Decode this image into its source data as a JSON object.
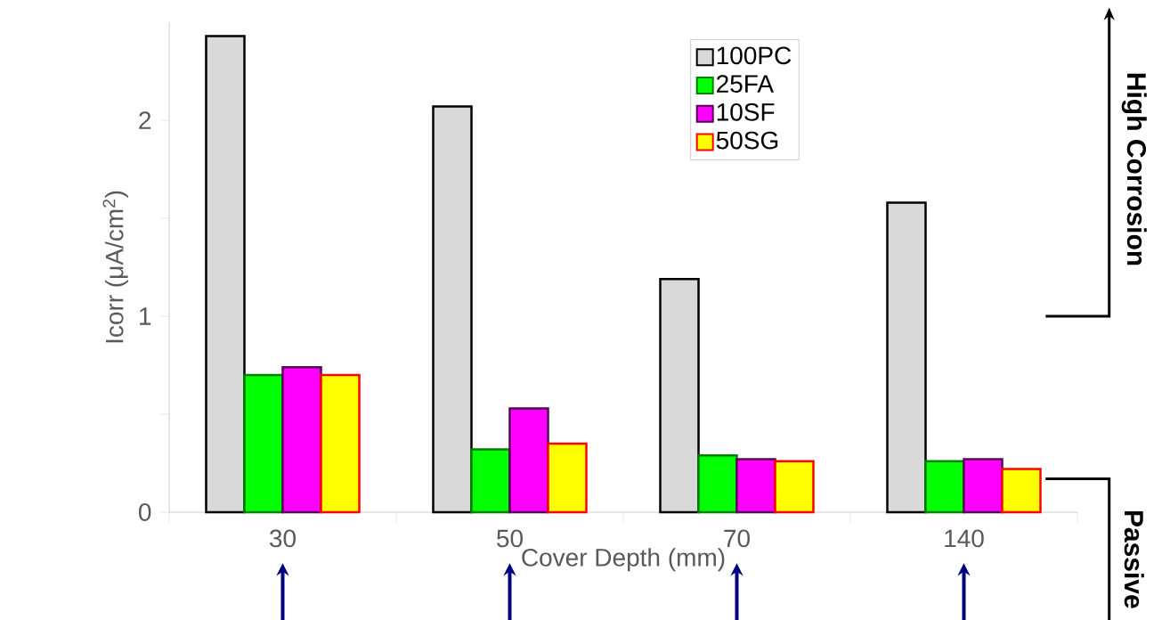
{
  "chart_data": {
    "type": "bar",
    "xlabel": "Cover Depth (mm)",
    "ylabel": "Icorr (μA/cm$^{2}$)",
    "categories": [
      "30",
      "50",
      "70",
      "140"
    ],
    "series": [
      {
        "name": "100PC",
        "color": "#d9d9d9",
        "values": [
          2.43,
          2.07,
          1.19,
          1.58
        ]
      },
      {
        "name": "25FA",
        "color": "#00ff00",
        "values": [
          0.7,
          0.32,
          0.29,
          0.26
        ]
      },
      {
        "name": "10SF",
        "color": "#ff00ff",
        "values": [
          0.74,
          0.53,
          0.27,
          0.27
        ]
      },
      {
        "name": "50SG",
        "color": "#ffff00",
        "values": [
          0.7,
          0.35,
          0.26,
          0.22
        ]
      }
    ],
    "ylim": [
      0,
      2.5
    ],
    "yticks": [
      0,
      {
        "value": 0.5,
        "label": null
      },
      1,
      {
        "value": 1.5,
        "label": null
      },
      2
    ],
    "legend": "top right",
    "annotations": [
      "High Corrosion",
      "Passive"
    ]
  }
}
